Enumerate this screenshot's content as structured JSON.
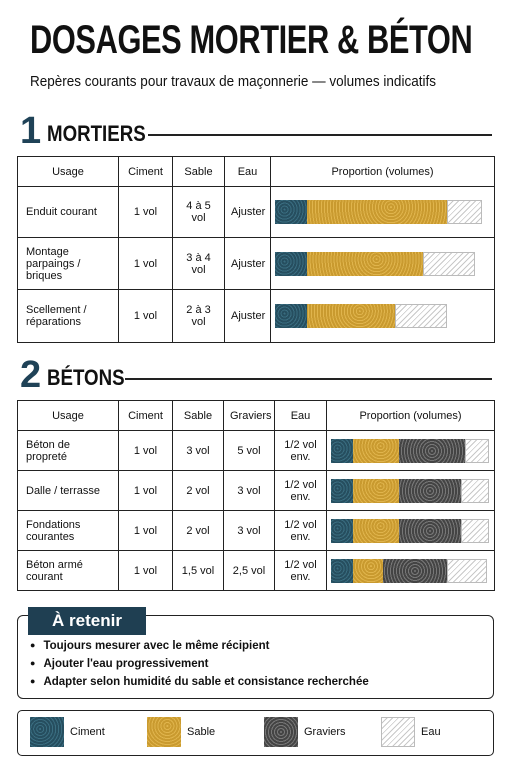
{
  "header": {
    "title": "DOSAGES MORTIER & BÉTON",
    "subtitle": "Repères courants pour travaux de maçonnerie — volumes indicatifs"
  },
  "sections": [
    {
      "number": "1",
      "title": "MORTIERS",
      "table": {
        "columns": [
          "Usage",
          "Ciment",
          "Sable",
          "Eau",
          "Proportion (volumes)"
        ],
        "rows": [
          [
            "Enduit courant",
            "1 vol",
            "4 à 5 vol",
            "Ajuster"
          ],
          [
            "Montage parpaings / briques",
            "1 vol",
            "3 à 4 vol",
            "Ajuster"
          ],
          [
            "Scellement / réparations",
            "1 vol",
            "2 à 3 vol",
            "Ajuster"
          ]
        ]
      }
    },
    {
      "number": "2",
      "title": "BÉTONS",
      "table": {
        "columns": [
          "Usage",
          "Ciment",
          "Sable",
          "Graviers",
          "Eau",
          "Proportion (volumes)"
        ],
        "rows": [
          [
            "Béton de propreté",
            "1 vol",
            "3 vol",
            "5 vol",
            "1/2 vol env."
          ],
          [
            "Dalle / terrasse",
            "1 vol",
            "2 vol",
            "3 vol",
            "1/2 vol env."
          ],
          [
            "Fondations courantes",
            "1 vol",
            "2 vol",
            "3 vol",
            "1/2 vol env."
          ],
          [
            "Béton armé courant",
            "1 vol",
            "1,5 vol",
            "2,5 vol",
            "1/2 vol env."
          ]
        ]
      }
    }
  ],
  "reminder": {
    "title": "À retenir",
    "items": [
      "Toujours mesurer avec le même récipient",
      "Ajouter l'eau progressivement",
      "Adapter selon humidité du sable et consistance recherchée"
    ]
  },
  "legend": [
    "Ciment",
    "Sable",
    "Graviers",
    "Eau"
  ]
}
